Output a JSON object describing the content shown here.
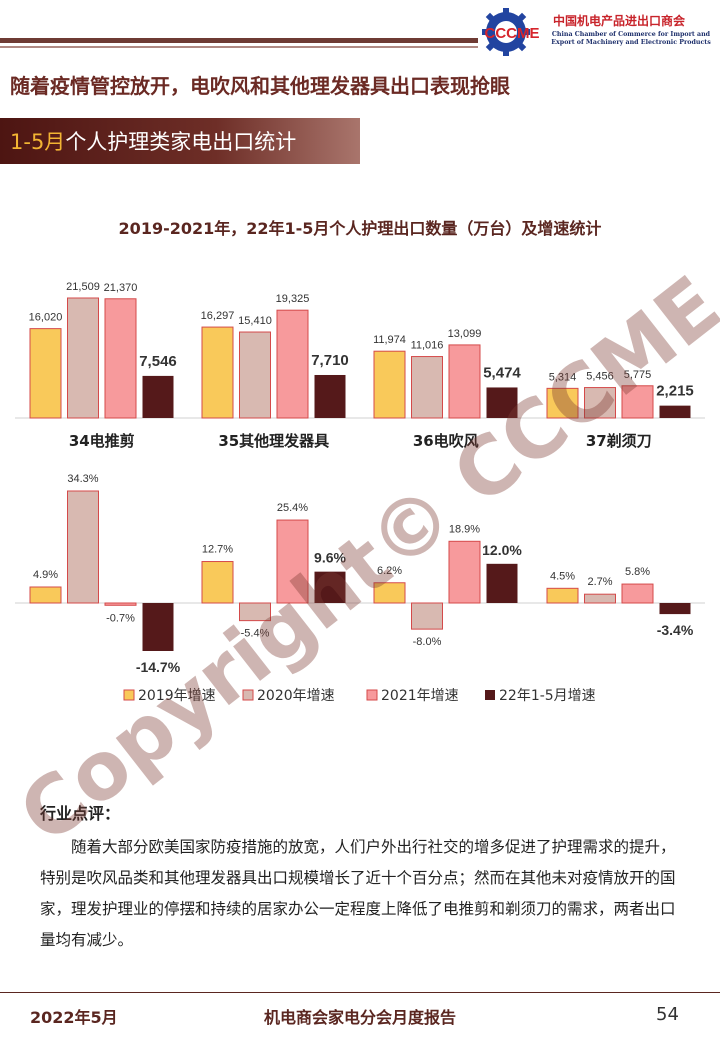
{
  "header": {
    "logo": {
      "abbr": "CCCME",
      "name_zh": "中国机电产品进出口商会",
      "name_en": "China Chamber of Commerce for Import and Export of Machinery and Electronic Products"
    },
    "headline": "随着疫情管控放开，电吹风和其他理发器具出口表现抢眼",
    "section_title_highlight": "1-5月",
    "section_title_rest": "个人护理类家电出口统计"
  },
  "chart_data": {
    "type": "bar",
    "title": "2019-2021年，22年1-5月个人护理出口数量（万台）及增速统计",
    "categories": [
      "34电推剪",
      "35其他理发器具",
      "36电吹风",
      "37剃须刀"
    ],
    "quantity_series": [
      {
        "name": "2019年增速",
        "color": "#f9c95a",
        "values": [
          16020,
          16297,
          11974,
          5314
        ],
        "labels": [
          "16,020",
          "16,297",
          "11,974",
          "5,314"
        ]
      },
      {
        "name": "2020年增速",
        "color": "#d8b9b1",
        "values": [
          21509,
          15410,
          11016,
          5456
        ],
        "labels": [
          "21,509",
          "15,410",
          "11,016",
          "5,456"
        ]
      },
      {
        "name": "2021年增速",
        "color": "#f79a9c",
        "values": [
          21370,
          19325,
          13099,
          5775
        ],
        "labels": [
          "21,370",
          "19,325",
          "13,099",
          "5,775"
        ]
      },
      {
        "name": "22年1-5月增速",
        "color": "#55191a",
        "values": [
          7546,
          7710,
          5474,
          2215
        ],
        "labels": [
          "7,546",
          "7,710",
          "5,474",
          "2,215"
        ]
      }
    ],
    "growth_series": [
      {
        "name": "2019年增速",
        "values": [
          4.9,
          12.7,
          6.2,
          4.5
        ],
        "labels": [
          "4.9%",
          "12.7%",
          "6.2%",
          "4.5%"
        ]
      },
      {
        "name": "2020年增速",
        "values": [
          34.3,
          -5.4,
          -8.0,
          2.7
        ],
        "labels": [
          "34.3%",
          "-5.4%",
          "-8.0%",
          "2.7%"
        ]
      },
      {
        "name": "2021年增速",
        "values": [
          -0.7,
          25.4,
          18.9,
          5.8
        ],
        "labels": [
          "-0.7%",
          "25.4%",
          "18.9%",
          "5.8%"
        ]
      },
      {
        "name": "22年1-5月增速",
        "values": [
          -14.7,
          9.6,
          12.0,
          -3.4
        ],
        "labels": [
          "-14.7%",
          "9.6%",
          "12.0%",
          "-3.4%"
        ]
      }
    ],
    "legend_position": "bottom"
  },
  "commentary": {
    "heading": "行业点评：",
    "body": "随着大部分欧美国家防疫措施的放宽，人们户外出行社交的增多促进了护理需求的提升，特别是吹风品类和其他理发器具出口规模增长了近十个百分点；然而在其他未对疫情放开的国家，理发护理业的停摆和持续的居家办公一定程度上降低了电推剪和剃须刀的需求，两者出口量均有减少。"
  },
  "footer": {
    "date": "2022年5月",
    "report": "机电商会家电分会月度报告",
    "page": "54"
  },
  "watermark": "Copyright© CCCME"
}
